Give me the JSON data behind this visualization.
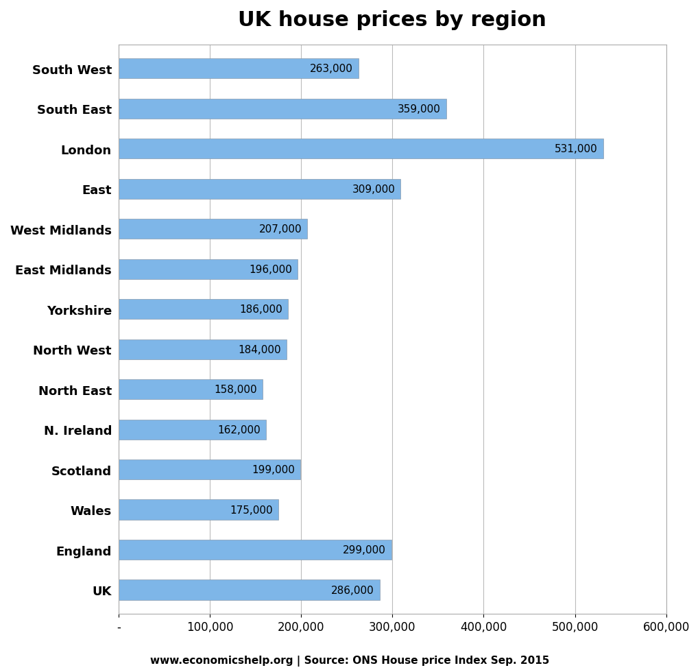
{
  "title": "UK house prices by region",
  "categories": [
    "UK",
    "England",
    "Wales",
    "Scotland",
    "N. Ireland",
    "North East",
    "North West",
    "Yorkshire",
    "East Midlands",
    "West Midlands",
    "East",
    "London",
    "South East",
    "South West"
  ],
  "values": [
    286000,
    299000,
    175000,
    199000,
    162000,
    158000,
    184000,
    186000,
    196000,
    207000,
    309000,
    531000,
    359000,
    263000
  ],
  "bar_color": "#7EB6E8",
  "bar_edge_color": "#8899AA",
  "label_fontsize": 11,
  "title_fontsize": 22,
  "tick_fontsize": 12,
  "ytick_fontsize": 13,
  "xlim": [
    0,
    600000
  ],
  "xticks": [
    0,
    100000,
    200000,
    300000,
    400000,
    500000,
    600000
  ],
  "xtick_labels": [
    "-",
    "100,000",
    "200,000",
    "300,000",
    "400,000",
    "500,000",
    "600,000"
  ],
  "footer": "www.economicshelp.org | Source: ONS House price Index Sep. 2015",
  "background_color": "#FFFFFF",
  "grid_color": "#BBBBBB"
}
